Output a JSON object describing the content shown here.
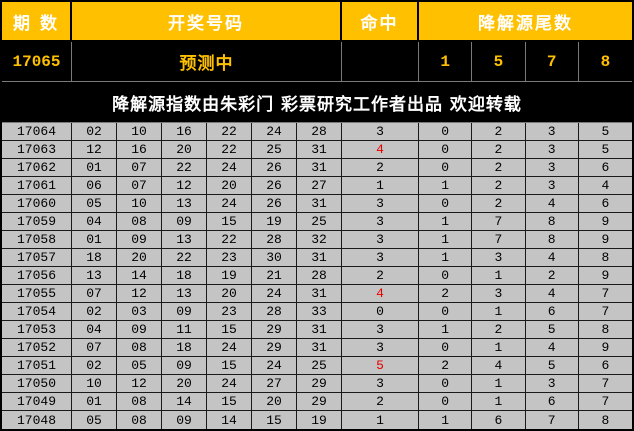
{
  "header": {
    "period": "期 数",
    "numbers": "开奖号码",
    "hit": "命中",
    "tails": "降解源尾数"
  },
  "predict": {
    "period": "17065",
    "status": "预测中",
    "hit": "",
    "tails": [
      "1",
      "5",
      "7",
      "8"
    ]
  },
  "banner": {
    "text": "降解源指数由朱彩门 彩票研究工作者出品 欢迎转载"
  },
  "colors": {
    "header_bg": "#ffc000",
    "header_text": "#ffffff",
    "black_row_bg": "#000000",
    "black_row_text": "#ffc000",
    "data_bg": "#c4c4c4",
    "data_text": "#000000",
    "hit_highlight": "#e60000"
  },
  "rows": [
    {
      "period": "17064",
      "numbers": [
        "02",
        "10",
        "16",
        "22",
        "24",
        "28"
      ],
      "hit": "3",
      "hit_red": false,
      "tails": [
        "0",
        "2",
        "3",
        "5"
      ]
    },
    {
      "period": "17063",
      "numbers": [
        "12",
        "16",
        "20",
        "22",
        "25",
        "31"
      ],
      "hit": "4",
      "hit_red": true,
      "tails": [
        "0",
        "2",
        "3",
        "5"
      ]
    },
    {
      "period": "17062",
      "numbers": [
        "01",
        "07",
        "22",
        "24",
        "26",
        "31"
      ],
      "hit": "2",
      "hit_red": false,
      "tails": [
        "0",
        "2",
        "3",
        "6"
      ]
    },
    {
      "period": "17061",
      "numbers": [
        "06",
        "07",
        "12",
        "20",
        "26",
        "27"
      ],
      "hit": "1",
      "hit_red": false,
      "tails": [
        "1",
        "2",
        "3",
        "4"
      ]
    },
    {
      "period": "17060",
      "numbers": [
        "05",
        "10",
        "13",
        "24",
        "26",
        "31"
      ],
      "hit": "3",
      "hit_red": false,
      "tails": [
        "0",
        "2",
        "4",
        "6"
      ]
    },
    {
      "period": "17059",
      "numbers": [
        "04",
        "08",
        "09",
        "15",
        "19",
        "25"
      ],
      "hit": "3",
      "hit_red": false,
      "tails": [
        "1",
        "7",
        "8",
        "9"
      ]
    },
    {
      "period": "17058",
      "numbers": [
        "01",
        "09",
        "13",
        "22",
        "28",
        "32"
      ],
      "hit": "3",
      "hit_red": false,
      "tails": [
        "1",
        "7",
        "8",
        "9"
      ]
    },
    {
      "period": "17057",
      "numbers": [
        "18",
        "20",
        "22",
        "23",
        "30",
        "31"
      ],
      "hit": "3",
      "hit_red": false,
      "tails": [
        "1",
        "3",
        "4",
        "8"
      ]
    },
    {
      "period": "17056",
      "numbers": [
        "13",
        "14",
        "18",
        "19",
        "21",
        "28"
      ],
      "hit": "2",
      "hit_red": false,
      "tails": [
        "0",
        "1",
        "2",
        "9"
      ]
    },
    {
      "period": "17055",
      "numbers": [
        "07",
        "12",
        "13",
        "20",
        "24",
        "31"
      ],
      "hit": "4",
      "hit_red": true,
      "tails": [
        "2",
        "3",
        "4",
        "7"
      ]
    },
    {
      "period": "17054",
      "numbers": [
        "02",
        "03",
        "09",
        "23",
        "28",
        "33"
      ],
      "hit": "0",
      "hit_red": false,
      "tails": [
        "0",
        "1",
        "6",
        "7"
      ]
    },
    {
      "period": "17053",
      "numbers": [
        "04",
        "09",
        "11",
        "15",
        "29",
        "31"
      ],
      "hit": "3",
      "hit_red": false,
      "tails": [
        "1",
        "2",
        "5",
        "8"
      ]
    },
    {
      "period": "17052",
      "numbers": [
        "07",
        "08",
        "18",
        "24",
        "29",
        "31"
      ],
      "hit": "3",
      "hit_red": false,
      "tails": [
        "0",
        "1",
        "4",
        "9"
      ]
    },
    {
      "period": "17051",
      "numbers": [
        "02",
        "05",
        "09",
        "15",
        "24",
        "25"
      ],
      "hit": "5",
      "hit_red": true,
      "tails": [
        "2",
        "4",
        "5",
        "6"
      ]
    },
    {
      "period": "17050",
      "numbers": [
        "10",
        "12",
        "20",
        "24",
        "27",
        "29"
      ],
      "hit": "3",
      "hit_red": false,
      "tails": [
        "0",
        "1",
        "3",
        "7"
      ]
    },
    {
      "period": "17049",
      "numbers": [
        "01",
        "08",
        "14",
        "15",
        "20",
        "29"
      ],
      "hit": "2",
      "hit_red": false,
      "tails": [
        "0",
        "1",
        "6",
        "7"
      ]
    },
    {
      "period": "17048",
      "numbers": [
        "05",
        "08",
        "09",
        "14",
        "15",
        "19"
      ],
      "hit": "1",
      "hit_red": false,
      "tails": [
        "1",
        "6",
        "7",
        "8"
      ]
    }
  ]
}
